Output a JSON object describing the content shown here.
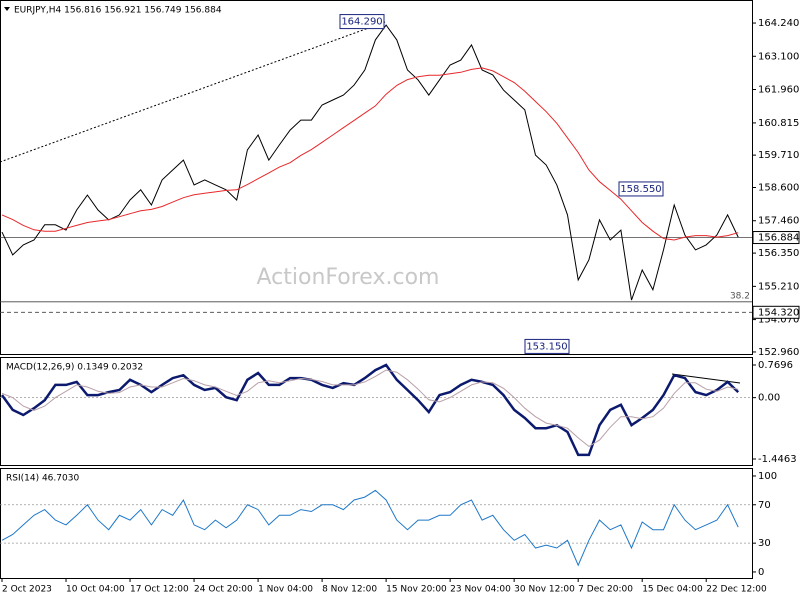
{
  "chart_data": [
    {
      "type": "line",
      "title": "EURJPY,H4  156.816 156.921 156.749 156.884",
      "watermark": "ActionForex.com",
      "series": [
        {
          "color": "#000000",
          "values": [
            157.07,
            156.29,
            156.63,
            156.8,
            157.32,
            157.32,
            157.14,
            157.83,
            158.34,
            157.83,
            157.49,
            157.66,
            158.17,
            158.52,
            158,
            158.86,
            159.2,
            159.54,
            158.69,
            158.86,
            158.69,
            158.52,
            158.17,
            159.89,
            160.4,
            159.54,
            160.06,
            160.57,
            160.91,
            160.91,
            161.43,
            161.6,
            161.77,
            162.11,
            162.63,
            163.66,
            164.17,
            163.66,
            162.63,
            162.29,
            161.77,
            162.29,
            162.8,
            162.97,
            163.49,
            162.63,
            162.46,
            161.94,
            161.6,
            161.26,
            159.71,
            159.37,
            158.69,
            157.66,
            155.43,
            156.12,
            157.49,
            156.8,
            157.14,
            154.74,
            155.77,
            155.09,
            156.46,
            158,
            156.97,
            156.46,
            156.63,
            156.97,
            157.66,
            156.9
          ]
        },
        {
          "color": "#e8282b",
          "values": [
            157.66,
            157.5,
            157.3,
            157.15,
            157.1,
            157.1,
            157.2,
            157.3,
            157.4,
            157.45,
            157.5,
            157.6,
            157.7,
            157.8,
            157.85,
            157.95,
            158.1,
            158.25,
            158.35,
            158.4,
            158.45,
            158.5,
            158.52,
            158.7,
            158.9,
            159.1,
            159.3,
            159.45,
            159.7,
            159.9,
            160.15,
            160.4,
            160.65,
            160.9,
            161.15,
            161.4,
            161.8,
            162.1,
            162.3,
            162.4,
            162.45,
            162.45,
            162.5,
            162.55,
            162.65,
            162.7,
            162.6,
            162.4,
            162.2,
            161.9,
            161.55,
            161.2,
            160.8,
            160.3,
            159.8,
            159.2,
            158.8,
            158.5,
            158.2,
            157.8,
            157.4,
            157.1,
            156.85,
            156.8,
            156.9,
            156.95,
            156.95,
            156.9,
            156.95,
            157.05
          ]
        }
      ],
      "ylim": [
        152.89,
        165.03
      ],
      "yticks": [
        {
          "value": 164.24,
          "label": "164.240"
        },
        {
          "value": 163.1,
          "label": "163.100"
        },
        {
          "value": 161.96,
          "label": "161.960"
        },
        160.815,
        {
          "value": 159.71,
          "label": "159.710"
        },
        {
          "value": 158.6,
          "label": "158.600"
        },
        {
          "value": 157.46,
          "label": "157.460"
        },
        {
          "value": 156.35,
          "label": "156.350"
        },
        {
          "value": 155.21,
          "label": "155.210"
        },
        {
          "value": 154.07,
          "label": "154.070"
        },
        {
          "value": 152.96,
          "label": "152.960"
        }
      ],
      "levels": [
        {
          "value": 156.884,
          "label": "156.884",
          "style": "solid"
        },
        {
          "value": 154.68,
          "label": "38.2",
          "style": "solid"
        },
        {
          "value": 154.32,
          "label": "154.320",
          "style": "dashed"
        }
      ],
      "annotations": [
        {
          "value": 164.29,
          "label": "164.290"
        },
        {
          "value": 158.55,
          "label": "158.550"
        },
        {
          "value": 153.15,
          "label": "153.150"
        }
      ]
    },
    {
      "type": "line",
      "title": "MACD(12,26,9) 0.1349 0.2032",
      "series": [
        {
          "color": "#0b1a6e",
          "values": [
            0.06,
            -0.29,
            -0.41,
            -0.25,
            -0.06,
            0.3,
            0.3,
            0.37,
            0.06,
            0.06,
            0.13,
            0.18,
            0.42,
            0.3,
            0.13,
            0.3,
            0.46,
            0.53,
            0.3,
            0.18,
            0.23,
            0.01,
            -0.06,
            0.42,
            0.58,
            0.3,
            0.3,
            0.46,
            0.46,
            0.42,
            0.3,
            0.23,
            0.34,
            0.3,
            0.46,
            0.65,
            0.77,
            0.42,
            0.18,
            -0.06,
            -0.34,
            0.06,
            0.13,
            0.3,
            0.42,
            0.37,
            0.3,
            0.06,
            -0.29,
            -0.48,
            -0.72,
            -0.72,
            -0.65,
            -0.81,
            -1.35,
            -1.35,
            -0.65,
            -0.29,
            -0.17,
            -0.65,
            -0.48,
            -0.29,
            0.06,
            0.53,
            0.46,
            0.13,
            0.06,
            0.18,
            0.37,
            0.13
          ]
        },
        {
          "color": "#b9a0a8",
          "values": [
            0.1,
            0,
            -0.2,
            -0.3,
            -0.2,
            0,
            0.15,
            0.3,
            0.25,
            0.15,
            0.1,
            0.12,
            0.25,
            0.3,
            0.25,
            0.25,
            0.35,
            0.45,
            0.4,
            0.3,
            0.25,
            0.15,
            0.05,
            0.15,
            0.35,
            0.4,
            0.35,
            0.4,
            0.45,
            0.43,
            0.38,
            0.3,
            0.3,
            0.3,
            0.37,
            0.5,
            0.65,
            0.6,
            0.42,
            0.2,
            -0.05,
            -0.1,
            0,
            0.15,
            0.3,
            0.37,
            0.35,
            0.22,
            0,
            -0.25,
            -0.45,
            -0.6,
            -0.65,
            -0.72,
            -0.95,
            -1.15,
            -1,
            -0.7,
            -0.45,
            -0.45,
            -0.5,
            -0.45,
            -0.25,
            0.1,
            0.35,
            0.35,
            0.2,
            0.15,
            0.25,
            0.2
          ]
        }
      ],
      "ylim": [
        -1.588,
        0.958
      ],
      "yticks": [
        0.7696,
        {
          "value": 0,
          "label": "0.00"
        },
        -1.4463
      ],
      "levels": [
        {
          "value": 0,
          "style": "dotted"
        }
      ]
    },
    {
      "type": "line",
      "title": "RSI(14) 46.7030",
      "categories": [
        "2 Oct 2023",
        null,
        null,
        null,
        null,
        null,
        "10 Oct 04:00",
        null,
        null,
        null,
        null,
        null,
        "17 Oct 12:00",
        null,
        null,
        null,
        null,
        null,
        "24 Oct 20:00",
        null,
        null,
        null,
        null,
        null,
        "1 Nov 04:00",
        null,
        null,
        null,
        null,
        null,
        "8 Nov 12:00",
        null,
        null,
        null,
        null,
        null,
        "15 Nov 20:00",
        null,
        null,
        null,
        null,
        null,
        "23 Nov 04:00",
        null,
        null,
        null,
        null,
        null,
        "30 Nov 12:00",
        null,
        null,
        null,
        null,
        null,
        "7 Dec 20:00",
        null,
        null,
        null,
        null,
        null,
        "15 Dec 04:00",
        null,
        null,
        null,
        null,
        null,
        "22 Dec 12:00",
        null,
        null,
        null
      ],
      "series": [
        {
          "color": "#1f78c8",
          "values": [
            33,
            39,
            49,
            59,
            65,
            54,
            49,
            59,
            70,
            54,
            44,
            59,
            54,
            65,
            49,
            65,
            59,
            75,
            49,
            44,
            54,
            46,
            54,
            70,
            65,
            49,
            59,
            59,
            65,
            63,
            70,
            70,
            65,
            75,
            78,
            85,
            75,
            54,
            44,
            54,
            54,
            59,
            59,
            70,
            75,
            54,
            59,
            44,
            33,
            39,
            25,
            28,
            25,
            33,
            7,
            33,
            54,
            44,
            49,
            25,
            52,
            44,
            44,
            70,
            54,
            44,
            49,
            54,
            70,
            46.7
          ]
        }
      ],
      "ylim": [
        -6.3,
        108.3
      ],
      "yticks": [
        0,
        30,
        70,
        100
      ],
      "levels": [
        {
          "value": 70,
          "style": "dotted"
        },
        {
          "value": 30,
          "style": "dotted"
        }
      ]
    }
  ]
}
